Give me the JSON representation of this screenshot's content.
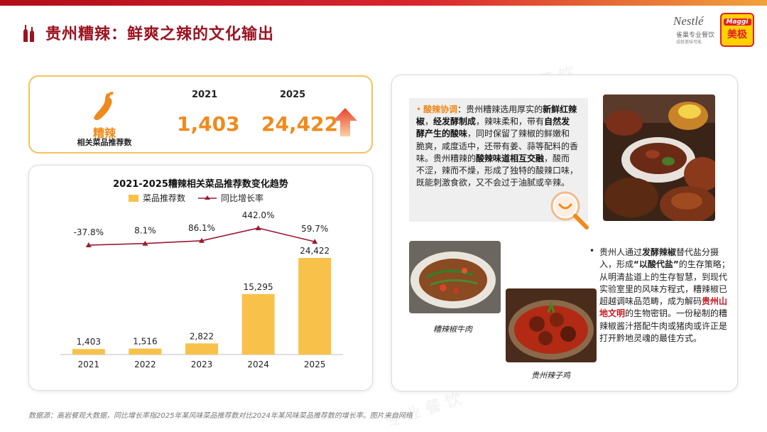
{
  "header": {
    "title": "贵州糟辣：鲜爽之辣的文化输出",
    "brand_nestle": "Nestlé",
    "brand_nestle_sub": "雀巢专业餐饮",
    "brand_nestle_sub2": "成就美味可能",
    "brand_maggi": "Maggi",
    "brand_maggi_cn": "美极"
  },
  "stat": {
    "name": "糟辣",
    "desc": "相关菜品推荐数",
    "year_a": "2021",
    "year_b": "2025",
    "value_a": "1,403",
    "value_b": "24,422",
    "arrow_icon": "up-arrow-icon"
  },
  "chart_data": {
    "type": "bar+line",
    "title": "2021-2025糟辣相关菜品推荐数变化趋势",
    "categories": [
      "2021",
      "2022",
      "2023",
      "2024",
      "2025"
    ],
    "series": [
      {
        "name": "菜品推荐数",
        "type": "bar",
        "color": "#f8c24a",
        "values": [
          1403,
          1516,
          2822,
          15295,
          24422
        ],
        "labels": [
          "1,403",
          "1,516",
          "2,822",
          "15,295",
          "24,422"
        ]
      },
      {
        "name": "同比增长率",
        "type": "line",
        "color": "#9b1a32",
        "values": [
          -37.8,
          8.1,
          86.1,
          442.0,
          59.7
        ],
        "labels": [
          "-37.8%",
          "8.1%",
          "86.1%",
          "442.0%",
          "59.7%"
        ]
      }
    ],
    "legend_placement": "top-center",
    "grid": false
  },
  "panel": {
    "quote_head": "酸辣协调",
    "quote_text": [
      {
        "t": "：贵州糟辣选用厚实的",
        "b": false
      },
      {
        "t": "新鲜红辣椒",
        "b": true
      },
      {
        "t": "，",
        "b": false
      },
      {
        "t": "经发酵制成",
        "b": true
      },
      {
        "t": "，辣味柔和，带有",
        "b": false
      },
      {
        "t": "自然发酵产生的酸味",
        "b": true
      },
      {
        "t": "，同时保留了辣椒的鲜嫩和脆爽，咸度适中，还带有姜、蒜等配料的香味。贵州糟辣的",
        "b": false
      },
      {
        "t": "酸辣味道相互交融",
        "b": true
      },
      {
        "t": "，酸而不涩，辣而不燥，形成了独特的酸辣口味，既能刺激食欲，又不会过于油腻或辛辣。",
        "b": false
      }
    ],
    "caption_beef": "糟辣椒牛肉",
    "caption_chicken": "贵州辣子鸡",
    "right_text": [
      {
        "t": "贵州人通过",
        "s": ""
      },
      {
        "t": "发酵辣椒",
        "s": "b"
      },
      {
        "t": "替代盐分摄入，形成",
        "s": ""
      },
      {
        "t": "“以酸代盐”",
        "s": "b"
      },
      {
        "t": "的生存策略；从明清盐道上的生存智慧，到现代实验室里的风味方程式，糟辣椒已超越调味品范畴，成为解码",
        "s": ""
      },
      {
        "t": "贵州山地文明",
        "s": "hl"
      },
      {
        "t": "的生物密钥。一份秘制的糟辣椒酱汁搭配牛肉或猪肉或许正是打开黔地灵魂的最佳方式。",
        "s": ""
      }
    ]
  },
  "footnote": "数据源：高岩餐观大数据，同比增长率指2025年某风味菜品推荐数对比2024年某风味菜品推荐数的增长率。图片来自网络"
}
